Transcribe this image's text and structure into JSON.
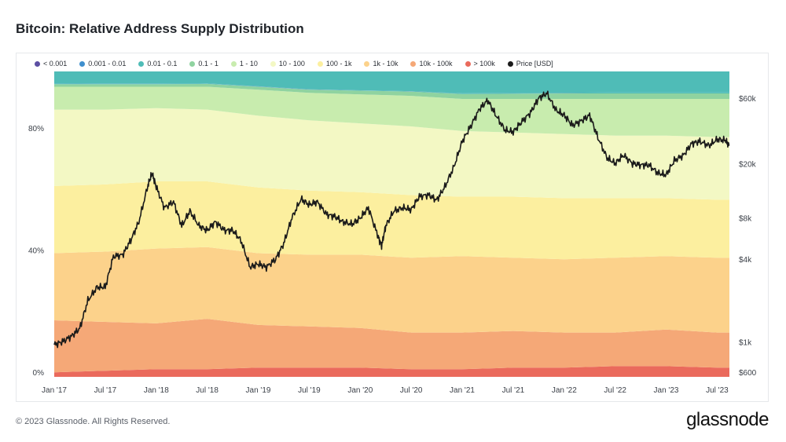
{
  "title": "Bitcoin: Relative Address Supply Distribution",
  "footer": "© 2023 Glassnode. All Rights Reserved.",
  "brand": "glassnode",
  "watermark": "glassnode",
  "legend": [
    {
      "label": "< 0.001",
      "color": "#5c4fa3"
    },
    {
      "label": "0.001 - 0.01",
      "color": "#3f8fce"
    },
    {
      "label": "0.01 - 0.1",
      "color": "#4fbcb7"
    },
    {
      "label": "0.1 - 1",
      "color": "#8fd3a0"
    },
    {
      "label": "1 - 10",
      "color": "#c8ecae"
    },
    {
      "label": "10 - 100",
      "color": "#f3f8c4"
    },
    {
      "label": "100 - 1k",
      "color": "#fcef9f"
    },
    {
      "label": "1k - 10k",
      "color": "#fcd28b"
    },
    {
      "label": "10k - 100k",
      "color": "#f5a877"
    },
    {
      "label": "> 100k",
      "color": "#ea6a5c"
    },
    {
      "label": "Price [USD]",
      "color": "#1a1a1a"
    }
  ],
  "chart_data": {
    "type": "area",
    "stacked": true,
    "title": "Bitcoin: Relative Address Supply Distribution",
    "x_ticks": [
      "Jan '17",
      "Jul '17",
      "Jan '18",
      "Jul '18",
      "Jan '19",
      "Jul '19",
      "Jan '20",
      "Jul '20",
      "Jan '21",
      "Jul '21",
      "Jan '22",
      "Jul '22",
      "Jan '23",
      "Jul '23"
    ],
    "x": [
      2017.0,
      2017.5,
      2018.0,
      2018.5,
      2019.0,
      2019.5,
      2020.0,
      2020.5,
      2021.0,
      2021.5,
      2022.0,
      2022.5,
      2023.0,
      2023.5,
      2023.62
    ],
    "y_left_ticks": [
      "0%",
      "40%",
      "80%"
    ],
    "y_left_range": [
      0,
      100
    ],
    "y_right_ticks": [
      "$600",
      "$1k",
      "$4k",
      "$8k",
      "$20k",
      "$60k"
    ],
    "y_right_values": [
      600,
      1000,
      4000,
      8000,
      20000,
      60000
    ],
    "y_right_scale": "log",
    "series": [
      {
        "name": "> 100k",
        "color": "#ea6a5c",
        "values": [
          1.5,
          2.0,
          2.5,
          2.5,
          3.0,
          3.0,
          3.0,
          2.5,
          2.5,
          3.0,
          3.0,
          3.5,
          3.5,
          3.0,
          3.0
        ]
      },
      {
        "name": "10k - 100k",
        "color": "#f5a877",
        "values": [
          17.0,
          16.0,
          15.0,
          16.5,
          14.0,
          13.5,
          13.0,
          12.0,
          12.0,
          12.0,
          11.5,
          11.0,
          12.0,
          11.5,
          11.5
        ]
      },
      {
        "name": "1k - 10k",
        "color": "#fcd28b",
        "values": [
          22.0,
          23.0,
          24.5,
          23.5,
          23.5,
          23.5,
          24.0,
          24.5,
          25.0,
          24.0,
          24.0,
          24.5,
          24.0,
          24.5,
          24.5
        ]
      },
      {
        "name": "100 - 1k",
        "color": "#fcef9f",
        "values": [
          22.0,
          22.0,
          22.0,
          21.5,
          21.5,
          21.0,
          20.5,
          20.5,
          19.5,
          20.0,
          20.0,
          19.5,
          19.0,
          19.0,
          19.0
        ]
      },
      {
        "name": "10 - 100",
        "color": "#f3f8c4",
        "values": [
          25.0,
          24.5,
          24.0,
          23.5,
          23.5,
          23.0,
          22.5,
          22.5,
          21.5,
          21.0,
          21.0,
          20.5,
          20.5,
          20.5,
          20.5
        ]
      },
      {
        "name": "1 - 10",
        "color": "#c8ecae",
        "values": [
          7.5,
          7.5,
          7.0,
          7.5,
          8.5,
          9.0,
          9.5,
          10.0,
          10.5,
          11.0,
          11.5,
          12.0,
          12.0,
          12.5,
          12.5
        ]
      },
      {
        "name": "0.1 - 1",
        "color": "#8fd3a0",
        "values": [
          0.8,
          0.8,
          0.8,
          0.9,
          1.0,
          1.0,
          1.2,
          1.4,
          1.6,
          1.7,
          1.8,
          1.8,
          1.8,
          1.8,
          1.8
        ]
      },
      {
        "name": "0.01 - 0.1",
        "color": "#4fbcb7",
        "values": [
          0.15,
          0.2,
          0.2,
          0.15,
          0.1,
          0.1,
          0.1,
          0.1,
          0.2,
          0.2,
          0.2,
          0.3,
          0.3,
          0.3,
          0.3
        ]
      },
      {
        "name": "0.001 - 0.01",
        "color": "#3f8fce",
        "values": [
          0.03,
          0.03,
          0.03,
          0.03,
          0.02,
          0.02,
          0.02,
          0.02,
          0.02,
          0.02,
          0.02,
          0.02,
          0.02,
          0.02,
          0.02
        ]
      },
      {
        "name": "< 0.001",
        "color": "#5c4fa3",
        "values": [
          0.02,
          0.02,
          0.02,
          0.02,
          0.02,
          0.02,
          0.02,
          0.02,
          0.02,
          0.02,
          0.02,
          0.02,
          0.02,
          0.02,
          0.02
        ]
      }
    ],
    "price": {
      "name": "Price [USD]",
      "color": "#1a1a1a",
      "x": [
        2017.0,
        2017.08,
        2017.17,
        2017.25,
        2017.33,
        2017.42,
        2017.5,
        2017.58,
        2017.67,
        2017.75,
        2017.83,
        2017.92,
        2017.96,
        2018.0,
        2018.08,
        2018.17,
        2018.25,
        2018.33,
        2018.42,
        2018.5,
        2018.58,
        2018.67,
        2018.75,
        2018.83,
        2018.92,
        2019.0,
        2019.08,
        2019.17,
        2019.25,
        2019.33,
        2019.42,
        2019.5,
        2019.58,
        2019.67,
        2019.75,
        2019.83,
        2019.92,
        2020.0,
        2020.08,
        2020.17,
        2020.21,
        2020.25,
        2020.33,
        2020.42,
        2020.5,
        2020.58,
        2020.67,
        2020.75,
        2020.83,
        2020.92,
        2021.0,
        2021.08,
        2021.17,
        2021.25,
        2021.33,
        2021.42,
        2021.5,
        2021.58,
        2021.67,
        2021.75,
        2021.83,
        2021.92,
        2022.0,
        2022.08,
        2022.17,
        2022.25,
        2022.33,
        2022.42,
        2022.5,
        2022.58,
        2022.67,
        2022.75,
        2022.83,
        2022.92,
        2023.0,
        2023.08,
        2023.17,
        2023.25,
        2023.33,
        2023.42,
        2023.5,
        2023.58,
        2023.62
      ],
      "values": [
        950,
        1000,
        1100,
        1250,
        2000,
        2500,
        2500,
        4200,
        4300,
        5500,
        7500,
        14000,
        17000,
        13500,
        9500,
        10500,
        7000,
        9000,
        7000,
        6500,
        7500,
        6500,
        6500,
        5500,
        3500,
        3700,
        3500,
        4000,
        5200,
        8000,
        11000,
        10000,
        10500,
        8500,
        8200,
        7500,
        7200,
        8000,
        9500,
        6000,
        5000,
        7000,
        9000,
        9500,
        9200,
        11500,
        11800,
        10800,
        13500,
        19000,
        29000,
        37000,
        50000,
        58000,
        45000,
        35000,
        34000,
        40000,
        47000,
        60000,
        65000,
        49000,
        45000,
        38000,
        41000,
        45000,
        31000,
        22000,
        20000,
        23000,
        20000,
        19500,
        19500,
        17000,
        16500,
        21000,
        23000,
        28000,
        29000,
        27000,
        30000,
        29500,
        27000
      ]
    }
  }
}
